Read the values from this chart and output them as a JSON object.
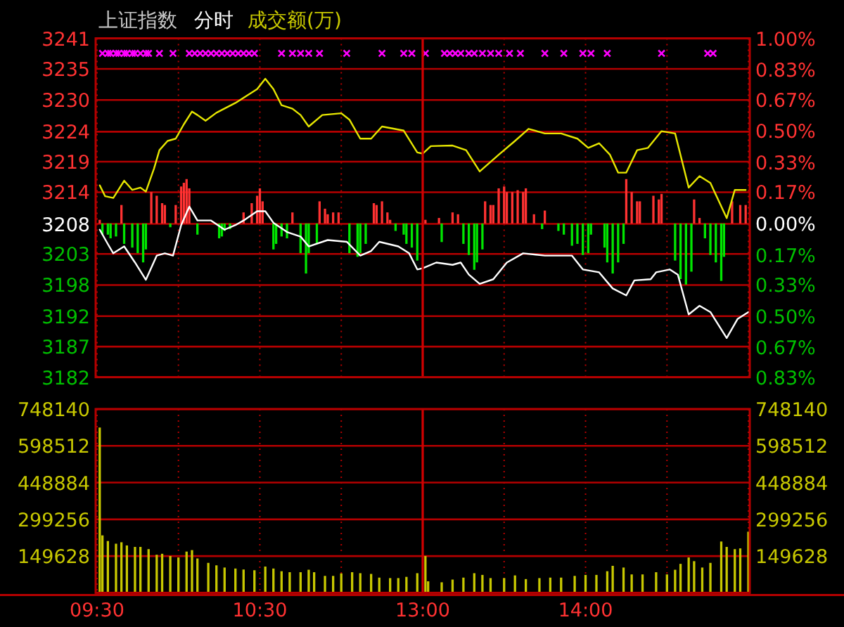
{
  "chart_data": [
    {
      "type": "line",
      "title": "上证指数",
      "subtitle": "分时",
      "annotations": [
        "成交额(万)"
      ],
      "categories": [
        "09:30",
        null,
        null,
        null,
        null,
        null,
        null,
        null,
        null,
        null,
        null,
        null,
        null,
        null,
        null,
        null,
        null,
        null,
        null,
        null,
        null,
        null,
        null,
        null,
        null,
        null,
        null,
        null,
        null,
        null,
        null,
        null,
        null,
        null,
        null,
        null,
        null,
        null,
        null,
        null,
        null,
        null,
        null,
        null,
        null,
        null,
        null,
        null,
        null,
        null,
        null,
        null,
        null,
        null,
        null,
        null,
        null,
        null,
        null,
        null,
        "10:30",
        null,
        null,
        null,
        null,
        null,
        null,
        null,
        null,
        null,
        null,
        null,
        null,
        null,
        null,
        null,
        null,
        null,
        null,
        null,
        null,
        null,
        null,
        null,
        null,
        null,
        null,
        null,
        null,
        null,
        null,
        null,
        null,
        null,
        null,
        null,
        null,
        null,
        null,
        null,
        null,
        null,
        null,
        null,
        null,
        null,
        null,
        null,
        null,
        null,
        null,
        null,
        null,
        null,
        null,
        null,
        null,
        null,
        null,
        null,
        "13:00",
        null,
        null,
        null,
        null,
        null,
        null,
        null,
        null,
        null,
        null,
        null,
        null,
        null,
        null,
        null,
        null,
        null,
        null,
        null,
        null,
        null,
        null,
        null,
        null,
        null,
        null,
        null,
        null,
        null,
        null,
        null,
        null,
        null,
        null,
        null,
        null,
        null,
        null,
        null,
        null,
        null,
        null,
        null,
        null,
        null,
        null,
        null,
        null,
        null,
        null,
        null,
        null,
        null,
        null,
        null,
        null,
        null,
        null,
        null,
        "14:00",
        null,
        null,
        null,
        null,
        null,
        null,
        null,
        null,
        null,
        null,
        null,
        null,
        null,
        null,
        null,
        null,
        null,
        null,
        null,
        null,
        null,
        null,
        null,
        null,
        null,
        null,
        null,
        null,
        null,
        null,
        null,
        null,
        null,
        null,
        null,
        null,
        null,
        null,
        null,
        null,
        null,
        null,
        null,
        null,
        null,
        null,
        null,
        null,
        null,
        null,
        null,
        null,
        null,
        null,
        null,
        null,
        null,
        null,
        null,
        null
      ],
      "ylim": [
        3181.8,
        3240.6
      ],
      "yticks": [
        {
          "value": 3240.6,
          "label": "3241"
        },
        {
          "value": 3235.3,
          "label": "3235"
        },
        {
          "value": 3229.9,
          "label": "3230"
        },
        {
          "value": 3224.4,
          "label": "3224"
        },
        {
          "value": 3219.2,
          "label": "3219"
        },
        {
          "value": 3213.9,
          "label": "3214"
        },
        {
          "value": 3208.4,
          "label": "3208"
        },
        {
          "value": 3203.2,
          "label": "3203"
        },
        {
          "value": 3197.8,
          "label": "3198"
        },
        {
          "value": 3192.4,
          "label": "3192"
        },
        {
          "value": 3187.1,
          "label": "3187"
        },
        {
          "value": 3181.8,
          "label": "3182"
        }
      ],
      "y2lim": [
        -0.83,
        1.0
      ],
      "y2ticks": [
        {
          "value": 1.0,
          "label": "1.00%"
        },
        {
          "value": 0.83,
          "label": "0.83%"
        },
        {
          "value": 0.67,
          "label": "0.67%"
        },
        {
          "value": 0.5,
          "label": "0.50%"
        },
        {
          "value": 0.33,
          "label": "0.33%"
        },
        {
          "value": 0.17,
          "label": "0.17%"
        },
        {
          "value": 0,
          "label": "0.00%"
        },
        {
          "value": -0.17,
          "label": "0.17%"
        },
        {
          "value": -0.33,
          "label": "0.33%"
        },
        {
          "value": -0.5,
          "label": "0.50%"
        },
        {
          "value": -0.67,
          "label": "0.67%"
        },
        {
          "value": -0.83,
          "label": "0.83%"
        }
      ],
      "tick_labels": "y",
      "grid": true,
      "ref_lines": [
        {
          "axis": "x",
          "value": "13:00",
          "line_style": "solid"
        }
      ],
      "series": [
        {
          "type": "bar",
          "axis": "y2",
          "color": "#ff3232",
          "values": [
            null,
            0.02,
            null,
            null,
            null,
            null,
            null,
            null,
            null,
            0.1,
            null,
            null,
            null,
            null,
            null,
            null,
            null,
            null,
            null,
            null,
            0.17,
            null,
            0.15,
            null,
            0.11,
            0.1,
            null,
            null,
            null,
            0.1,
            null,
            0.2,
            0.22,
            0.24,
            0.19,
            null,
            null,
            null,
            null,
            null,
            null,
            null,
            null,
            null,
            null,
            null,
            null,
            null,
            null,
            null,
            null,
            null,
            null,
            null,
            0.06,
            null,
            null,
            0.11,
            null,
            0.15,
            0.19,
            0.12,
            null,
            null,
            null,
            null,
            null,
            null,
            null,
            null,
            null,
            null,
            0.06,
            null,
            null,
            null,
            null,
            null,
            null,
            null,
            null,
            null,
            0.12,
            null,
            0.08,
            0.05,
            null,
            0.06,
            null,
            0.06,
            null,
            null,
            null,
            null,
            null,
            null,
            null,
            null,
            null,
            null,
            null,
            null,
            0.11,
            0.1,
            null,
            0.12,
            null,
            0.06,
            0.02,
            null,
            null,
            null,
            null,
            null,
            null,
            null,
            null,
            null,
            null,
            null,
            null,
            0.02,
            null,
            null,
            null,
            null,
            0.03,
            null,
            null,
            null,
            null,
            0.06,
            null,
            0.05,
            null,
            null,
            null,
            null,
            null,
            null,
            null,
            null,
            null,
            0.12,
            null,
            0.1,
            0.1,
            null,
            0.19,
            null,
            0.2,
            0.17,
            null,
            0.17,
            null,
            0.18,
            null,
            0.17,
            0.19,
            null,
            null,
            0.05,
            null,
            null,
            null,
            0.07,
            null,
            null,
            null,
            null,
            null,
            null,
            null,
            null,
            null,
            null,
            null,
            null,
            null,
            null,
            null,
            null,
            null,
            null,
            null,
            null,
            null,
            null,
            null,
            null,
            null,
            null,
            null,
            null,
            null,
            0.24,
            null,
            0.17,
            null,
            0.12,
            0.12,
            null,
            null,
            null,
            null,
            0.15,
            null,
            0.13,
            0.16,
            null,
            null,
            null,
            null,
            null,
            null,
            null,
            null,
            null,
            null,
            null,
            0.13,
            null,
            0.03,
            null,
            null,
            null,
            null,
            null,
            null,
            null,
            null,
            null,
            null,
            null,
            0.12,
            null,
            null,
            0.1,
            null,
            0.1,
            null
          ]
        },
        {
          "type": "bar",
          "axis": "y2",
          "color": "#00e600",
          "values": [
            null,
            null,
            -0.06,
            null,
            -0.06,
            -0.08,
            null,
            -0.07,
            null,
            null,
            -0.11,
            null,
            null,
            -0.13,
            null,
            -0.16,
            null,
            -0.21,
            -0.14,
            null,
            null,
            null,
            null,
            null,
            null,
            null,
            null,
            -0.02,
            null,
            null,
            null,
            null,
            null,
            null,
            null,
            null,
            null,
            -0.06,
            null,
            null,
            null,
            null,
            null,
            null,
            null,
            -0.08,
            -0.07,
            -0.04,
            null,
            -0.03,
            null,
            null,
            null,
            null,
            null,
            null,
            null,
            null,
            null,
            null,
            null,
            null,
            null,
            null,
            null,
            -0.14,
            -0.11,
            null,
            -0.07,
            null,
            -0.08,
            null,
            null,
            null,
            null,
            -0.16,
            null,
            -0.27,
            -0.16,
            null,
            null,
            -0.11,
            null,
            null,
            null,
            null,
            null,
            null,
            null,
            null,
            null,
            null,
            null,
            -0.16,
            null,
            null,
            -0.18,
            -0.16,
            null,
            -0.11,
            null,
            null,
            null,
            null,
            null,
            null,
            null,
            null,
            null,
            null,
            -0.04,
            null,
            null,
            -0.06,
            -0.11,
            null,
            -0.13,
            null,
            -0.2,
            null,
            null,
            null,
            null,
            null,
            null,
            null,
            null,
            -0.1,
            null,
            null,
            null,
            null,
            null,
            null,
            null,
            -0.11,
            null,
            -0.17,
            null,
            -0.25,
            -0.21,
            null,
            -0.14,
            null,
            null,
            null,
            null,
            null,
            null,
            null,
            null,
            null,
            null,
            null,
            null,
            null,
            null,
            null,
            null,
            null,
            null,
            null,
            null,
            null,
            -0.03,
            null,
            null,
            null,
            null,
            null,
            -0.04,
            null,
            -0.06,
            null,
            null,
            -0.12,
            null,
            -0.11,
            null,
            -0.17,
            null,
            -0.16,
            -0.06,
            null,
            null,
            null,
            null,
            -0.13,
            -0.21,
            null,
            -0.27,
            null,
            -0.21,
            null,
            -0.11,
            null,
            null,
            null,
            null,
            null,
            null,
            null,
            null,
            null,
            null,
            null,
            null,
            null,
            null,
            null,
            null,
            null,
            null,
            -0.2,
            null,
            -0.3,
            null,
            -0.33,
            null,
            -0.26,
            null,
            null,
            null,
            null,
            -0.08,
            null,
            -0.17,
            null,
            -0.21,
            null,
            -0.31,
            -0.18,
            null,
            null,
            null,
            null,
            null,
            null,
            null,
            null,
            null
          ]
        },
        {
          "color": "#e6e600",
          "line_style": "solid",
          "values": [
            null,
            3215.1,
            null,
            3213.2,
            null,
            null,
            3212.9,
            null,
            null,
            null,
            3215.9,
            null,
            null,
            3214.3,
            null,
            null,
            3214.7,
            null,
            3214.0,
            null,
            null,
            3218.0,
            null,
            3221.2,
            null,
            null,
            3222.8,
            null,
            null,
            3223.2,
            null,
            null,
            3225.7,
            null,
            null,
            3227.9,
            null,
            3227.3,
            null,
            null,
            3226.3,
            null,
            null,
            null,
            3227.7,
            null,
            null,
            null,
            null,
            null,
            null,
            3229.4,
            null,
            null,
            null,
            null,
            null,
            null,
            null,
            3231.8,
            null,
            null,
            3233.6,
            null,
            null,
            3231.8,
            null,
            null,
            3229.0,
            null,
            null,
            null,
            3228.4,
            null,
            null,
            3227.3,
            null,
            null,
            3225.3,
            null,
            null,
            null,
            null,
            3227.3,
            null,
            null,
            null,
            null,
            null,
            null,
            3227.6,
            null,
            null,
            3226.5,
            null,
            null,
            null,
            3223.2,
            null,
            null,
            null,
            3223.2,
            null,
            null,
            null,
            3225.3,
            null,
            null,
            null,
            null,
            null,
            null,
            null,
            3224.6,
            null,
            null,
            null,
            null,
            3220.8,
            null,
            3220.6,
            null,
            null,
            3221.9,
            null,
            null,
            null,
            null,
            null,
            null,
            null,
            3222.0,
            null,
            null,
            null,
            null,
            3221.2,
            null,
            null,
            null,
            null,
            3217.5,
            null,
            null,
            null,
            null,
            null,
            null,
            3220.4,
            null,
            null,
            null,
            null,
            null,
            3222.8,
            null,
            null,
            null,
            null,
            3224.9,
            null,
            null,
            null,
            null,
            null,
            3224.1,
            null,
            null,
            null,
            null,
            null,
            3224.1,
            null,
            null,
            null,
            null,
            null,
            3223.2,
            null,
            null,
            null,
            3221.6,
            null,
            null,
            null,
            3222.4,
            null,
            null,
            null,
            3220.4,
            null,
            null,
            3217.3,
            null,
            null,
            3217.3,
            null,
            null,
            null,
            3221.2,
            null,
            null,
            null,
            3221.6,
            null,
            null,
            null,
            null,
            3224.5,
            null,
            null,
            null,
            null,
            3224.1,
            null,
            null,
            null,
            null,
            3214.7,
            null,
            null,
            null,
            3216.7,
            null,
            null,
            null,
            3215.5,
            null,
            null,
            null,
            null,
            null,
            3209.4,
            null,
            null,
            3214.3,
            null,
            null,
            null,
            3214.3,
            null
          ]
        },
        {
          "color": "#ffffff",
          "line_style": "solid",
          "values": [
            null,
            3207.4,
            null,
            null,
            3204.9,
            null,
            3203.3,
            null,
            null,
            null,
            3204.5,
            null,
            null,
            null,
            3201.7,
            null,
            null,
            null,
            3198.7,
            null,
            null,
            null,
            3202.9,
            null,
            null,
            3203.3,
            null,
            null,
            3202.9,
            null,
            null,
            3208.2,
            null,
            null,
            3211.4,
            null,
            null,
            3209.0,
            null,
            null,
            null,
            null,
            3209.0,
            null,
            null,
            null,
            null,
            3207.4,
            null,
            null,
            null,
            3208.2,
            null,
            null,
            3209.0,
            null,
            null,
            null,
            null,
            3210.6,
            null,
            null,
            3210.6,
            null,
            null,
            3208.6,
            null,
            null,
            null,
            null,
            3207.0,
            null,
            null,
            null,
            null,
            3206.2,
            null,
            null,
            3204.5,
            null,
            null,
            null,
            null,
            null,
            null,
            3205.6,
            null,
            null,
            null,
            null,
            null,
            null,
            3205.3,
            null,
            null,
            null,
            null,
            3202.9,
            null,
            null,
            null,
            3203.7,
            null,
            null,
            3205.3,
            null,
            null,
            null,
            null,
            null,
            null,
            3204.5,
            null,
            null,
            null,
            3203.3,
            null,
            null,
            3200.5,
            null,
            3200.7,
            null,
            null,
            null,
            null,
            3201.7,
            null,
            null,
            null,
            null,
            null,
            3201.3,
            null,
            null,
            3201.7,
            null,
            null,
            3199.6,
            null,
            null,
            null,
            3198.0,
            null,
            null,
            null,
            null,
            3198.8,
            null,
            null,
            null,
            null,
            3201.7,
            null,
            null,
            null,
            null,
            null,
            3203.3,
            null,
            null,
            null,
            null,
            null,
            null,
            null,
            3202.9,
            null,
            null,
            null,
            null,
            null,
            null,
            null,
            null,
            null,
            3202.9,
            null,
            null,
            null,
            3200.5,
            null,
            null,
            null,
            null,
            null,
            3200.0,
            null,
            null,
            null,
            null,
            3197.2,
            null,
            null,
            null,
            null,
            3196.0,
            null,
            null,
            3198.6,
            null,
            null,
            null,
            null,
            null,
            3198.8,
            null,
            3200.0,
            null,
            null,
            null,
            null,
            3200.5,
            null,
            null,
            3199.6,
            null,
            null,
            null,
            3192.7,
            null,
            null,
            null,
            3194.2,
            null,
            null,
            null,
            3193.1,
            null,
            null,
            null,
            null,
            null,
            3188.6,
            null,
            null,
            null,
            3191.9,
            null,
            null,
            null,
            3193.1
          ]
        },
        {
          "type": "scatter",
          "marker": "cross",
          "color": "#ff00ff",
          "values": [
            null,
            null,
            3238,
            null,
            3238,
            3238,
            null,
            3238,
            3238,
            null,
            3238,
            3238,
            null,
            3238,
            3238,
            null,
            3238,
            null,
            3238,
            3238,
            null,
            null,
            null,
            3238,
            null,
            null,
            null,
            null,
            3238,
            null,
            null,
            null,
            null,
            null,
            3238,
            null,
            3238,
            null,
            3238,
            null,
            3238,
            null,
            3238,
            null,
            3238,
            null,
            3238,
            null,
            3238,
            null,
            3238,
            null,
            3238,
            null,
            3238,
            null,
            3238,
            null,
            3238,
            null,
            null,
            null,
            null,
            null,
            null,
            null,
            null,
            null,
            3238,
            null,
            null,
            null,
            3238,
            null,
            null,
            3238,
            null,
            null,
            3238,
            null,
            null,
            null,
            3238,
            null,
            null,
            null,
            null,
            null,
            null,
            null,
            null,
            null,
            3238,
            null,
            null,
            null,
            null,
            null,
            null,
            null,
            null,
            null,
            null,
            null,
            null,
            3238,
            null,
            null,
            null,
            null,
            null,
            null,
            null,
            3238,
            null,
            null,
            3238,
            null,
            null,
            null,
            null,
            3238,
            null,
            null,
            null,
            null,
            null,
            null,
            3238,
            null,
            3238,
            null,
            3238,
            null,
            3238,
            null,
            null,
            3238,
            null,
            3238,
            null,
            null,
            3238,
            null,
            null,
            3238,
            null,
            null,
            3238,
            null,
            null,
            null,
            3238,
            null,
            null,
            null,
            3238,
            null,
            null,
            null,
            null,
            null,
            null,
            null,
            null,
            3238,
            null,
            null,
            null,
            null,
            null,
            null,
            3238,
            null,
            null,
            null,
            null,
            null,
            null,
            3238,
            null,
            null,
            3238,
            null,
            null,
            null,
            null,
            null,
            3238,
            null,
            null,
            null,
            null,
            null,
            null,
            null,
            null,
            null,
            null,
            null,
            null,
            null,
            null,
            null,
            null,
            null,
            null,
            null,
            3238,
            null,
            null,
            null,
            null,
            null,
            null,
            null,
            null,
            null,
            null,
            null,
            null,
            null,
            null,
            null,
            null,
            3238,
            null,
            3238,
            null,
            null,
            null,
            null,
            null,
            null,
            null,
            null,
            null,
            null,
            null,
            null,
            null
          ]
        }
      ]
    },
    {
      "type": "bar",
      "categories": [
        "09:30",
        null,
        null,
        null,
        null,
        null,
        null,
        null,
        null,
        null,
        null,
        null,
        null,
        null,
        null,
        null,
        null,
        null,
        null,
        null,
        null,
        null,
        null,
        null,
        null,
        null,
        null,
        null,
        null,
        null,
        null,
        null,
        null,
        null,
        null,
        null,
        null,
        null,
        null,
        null,
        null,
        null,
        null,
        null,
        null,
        null,
        null,
        null,
        null,
        null,
        null,
        null,
        null,
        null,
        null,
        null,
        null,
        null,
        null,
        null,
        "10:30",
        null,
        null,
        null,
        null,
        null,
        null,
        null,
        null,
        null,
        null,
        null,
        null,
        null,
        null,
        null,
        null,
        null,
        null,
        null,
        null,
        null,
        null,
        null,
        null,
        null,
        null,
        null,
        null,
        null,
        null,
        null,
        null,
        null,
        null,
        null,
        null,
        null,
        null,
        null,
        null,
        null,
        null,
        null,
        null,
        null,
        null,
        null,
        null,
        null,
        null,
        null,
        null,
        null,
        null,
        null,
        null,
        null,
        null,
        null,
        "13:00",
        null,
        null,
        null,
        null,
        null,
        null,
        null,
        null,
        null,
        null,
        null,
        null,
        null,
        null,
        null,
        null,
        null,
        null,
        null,
        null,
        null,
        null,
        null,
        null,
        null,
        null,
        null,
        null,
        null,
        null,
        null,
        null,
        null,
        null,
        null,
        null,
        null,
        null,
        null,
        null,
        null,
        null,
        null,
        null,
        null,
        null,
        null,
        null,
        null,
        null,
        null,
        null,
        null,
        null,
        null,
        null,
        null,
        null,
        null,
        "14:00",
        null,
        null,
        null,
        null,
        null,
        null,
        null,
        null,
        null,
        null,
        null,
        null,
        null,
        null,
        null,
        null,
        null,
        null,
        null,
        null,
        null,
        null,
        null,
        null,
        null,
        null,
        null,
        null,
        null,
        null,
        null,
        null,
        null,
        null,
        null,
        null,
        null,
        null,
        null,
        null,
        null,
        null,
        null,
        null,
        null,
        null,
        null,
        null,
        null,
        null,
        null,
        null,
        null,
        null,
        null,
        null,
        null,
        null,
        null,
        null
      ],
      "ylim": [
        0,
        748140
      ],
      "yticks": [
        149628,
        299256,
        448884,
        598512,
        748140
      ],
      "y2lim": [
        0,
        748140
      ],
      "y2ticks": [
        149628,
        299256,
        448884,
        598512,
        748140
      ],
      "grid": true,
      "ref_lines": [
        {
          "axis": "x",
          "value": "13:00",
          "line_style": "solid"
        }
      ],
      "series": [
        {
          "color": "#c8c800",
          "values": [
            null,
            673000,
            234000,
            null,
            211000,
            null,
            null,
            200000,
            null,
            206000,
            null,
            193000,
            null,
            null,
            187000,
            null,
            187000,
            null,
            null,
            178000,
            null,
            null,
            155000,
            null,
            159000,
            null,
            null,
            150000,
            null,
            null,
            144000,
            null,
            null,
            168000,
            null,
            174000,
            null,
            140000,
            null,
            null,
            null,
            122000,
            null,
            null,
            112000,
            null,
            null,
            103000,
            null,
            null,
            null,
            99000,
            null,
            null,
            95000,
            null,
            null,
            null,
            92000,
            null,
            null,
            null,
            107000,
            null,
            null,
            99000,
            null,
            null,
            88000,
            null,
            null,
            84000,
            null,
            null,
            null,
            84000,
            null,
            null,
            94000,
            null,
            84000,
            null,
            null,
            null,
            69000,
            null,
            null,
            69000,
            null,
            null,
            79000,
            null,
            null,
            null,
            84000,
            null,
            null,
            80000,
            null,
            null,
            null,
            77000,
            null,
            null,
            62000,
            null,
            null,
            null,
            60000,
            null,
            null,
            60000,
            null,
            null,
            65000,
            null,
            null,
            null,
            80000,
            null,
            null,
            150000,
            47000,
            null,
            null,
            null,
            null,
            43000,
            null,
            null,
            null,
            54000,
            null,
            null,
            null,
            62000,
            null,
            null,
            null,
            80000,
            null,
            null,
            73000,
            null,
            null,
            60000,
            null,
            null,
            null,
            null,
            60000,
            null,
            null,
            null,
            71000,
            null,
            null,
            null,
            56000,
            null,
            null,
            null,
            null,
            60000,
            null,
            null,
            null,
            62000,
            null,
            null,
            null,
            62000,
            null,
            null,
            null,
            null,
            69000,
            null,
            null,
            null,
            73000,
            null,
            null,
            null,
            73000,
            null,
            null,
            null,
            88000,
            null,
            110000,
            null,
            null,
            null,
            103000,
            null,
            null,
            75000,
            null,
            null,
            null,
            75000,
            null,
            null,
            null,
            null,
            84000,
            null,
            null,
            null,
            75000,
            null,
            null,
            94000,
            null,
            118000,
            null,
            null,
            144000,
            null,
            129000,
            null,
            null,
            103000,
            null,
            null,
            122000,
            null,
            null,
            null,
            209000,
            null,
            187000,
            null,
            null,
            178000,
            null,
            181000,
            null,
            null,
            249000
          ]
        }
      ]
    }
  ]
}
